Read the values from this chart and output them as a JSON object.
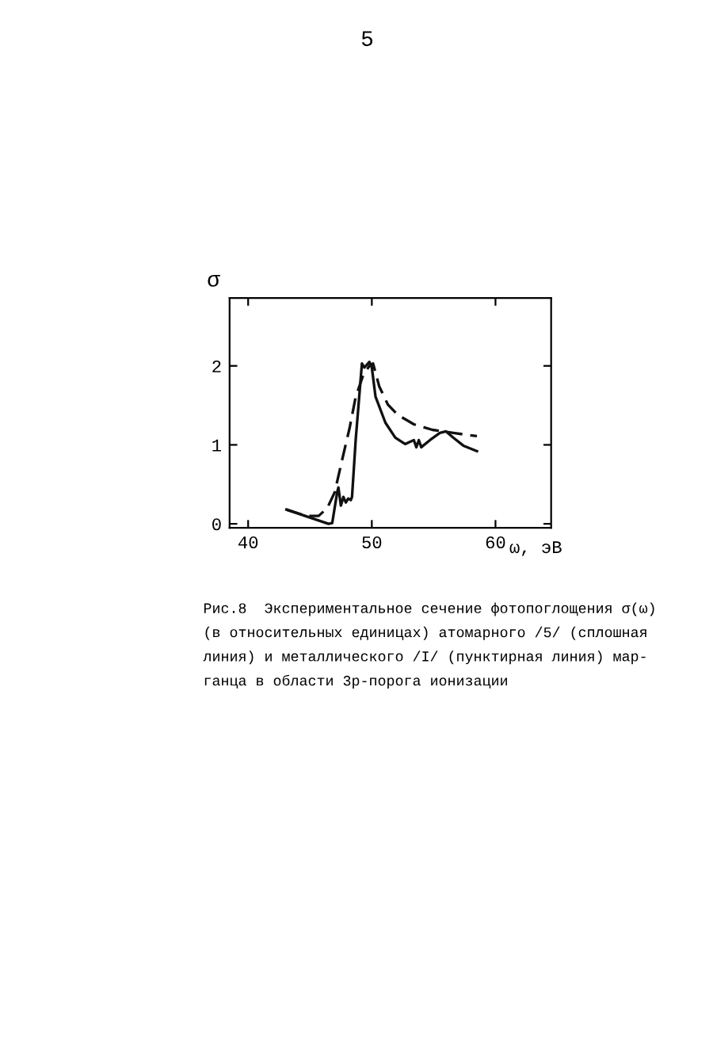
{
  "chart_data": {
    "type": "line",
    "xlabel": "ω, эВ",
    "ylabel": "σ",
    "xlim": [
      38.5,
      64.5
    ],
    "ylim": [
      -0.05,
      2.86
    ],
    "xticks": [
      40,
      50,
      60
    ],
    "yticks": [
      0,
      1,
      2
    ],
    "grid": false,
    "legend": false,
    "marker": "none",
    "annotations": [
      "5",
      "Рис.8  Экспериментальное сечение фотопоглощения σ(ω)\n(в относительных единицах) атомарного /5/ (сплошная\nлиния) и металлического /I/ (пунктирная линия) мар-\nганца в области 3р-порога ионизации"
    ],
    "series": [
      {
        "color": "#111111",
        "line_style": "solid",
        "x": [
          43.1,
          46.5,
          46.8,
          47.2,
          47.3,
          47.5,
          47.7,
          47.9,
          48.1,
          48.3,
          48.4,
          48.7,
          49.2,
          49.4,
          49.8,
          50.0,
          50.3,
          51.1,
          51.9,
          52.7,
          53.1,
          53.4,
          53.6,
          53.8,
          54.0,
          54.7,
          55.5,
          56.0,
          56.6,
          57.4,
          58.5
        ],
        "values": [
          0.18,
          0.0,
          0.01,
          0.4,
          0.46,
          0.23,
          0.34,
          0.27,
          0.32,
          0.3,
          0.34,
          1.07,
          2.03,
          1.98,
          2.05,
          1.98,
          1.61,
          1.28,
          1.09,
          1.01,
          1.04,
          1.06,
          0.97,
          1.06,
          0.97,
          1.06,
          1.15,
          1.17,
          1.09,
          0.99,
          0.92
        ]
      },
      {
        "color": "#111111",
        "line_style": "dashed",
        "x": [
          43.1,
          44.7,
          45.7,
          46.4,
          47.0,
          47.6,
          48.2,
          48.7,
          49.3,
          49.8,
          50.1,
          50.6,
          51.3,
          52.1,
          53.4,
          54.9,
          56.6,
          58.5
        ],
        "values": [
          0.18,
          0.1,
          0.1,
          0.2,
          0.4,
          0.81,
          1.21,
          1.61,
          1.88,
          2.0,
          2.03,
          1.74,
          1.51,
          1.38,
          1.26,
          1.19,
          1.15,
          1.11
        ]
      }
    ]
  }
}
